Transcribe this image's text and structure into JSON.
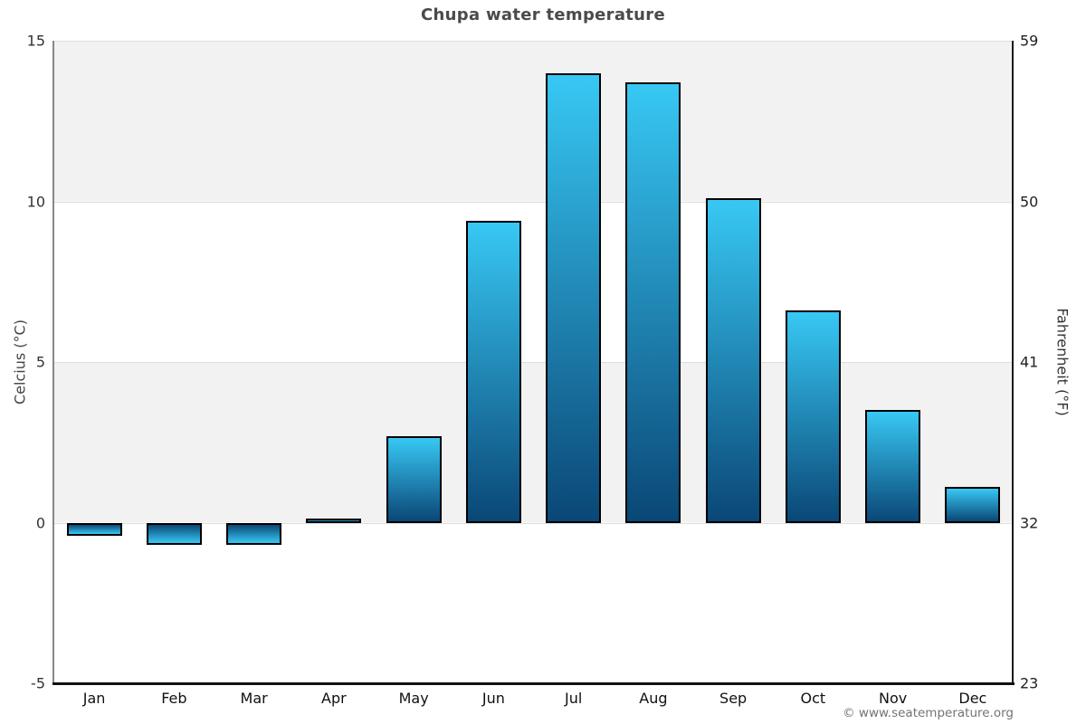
{
  "page": {
    "copyright": "© www.seatemperature.org"
  },
  "chart_data": {
    "type": "bar",
    "title": "Chupa water temperature",
    "categories": [
      "Jan",
      "Feb",
      "Mar",
      "Apr",
      "May",
      "Jun",
      "Jul",
      "Aug",
      "Sep",
      "Oct",
      "Nov",
      "Dec"
    ],
    "values": [
      -0.4,
      -0.7,
      -0.7,
      0.1,
      2.7,
      9.4,
      14.0,
      13.7,
      10.1,
      6.6,
      3.5,
      1.1
    ],
    "series_name": "Water temperature",
    "xlabel": "",
    "ylabel_left": "Celcius (°C)",
    "ylabel_right": "Fahrenheit (°F)",
    "ylim_celsius": [
      -5,
      15
    ],
    "yticks_left": [
      15,
      10,
      5,
      0,
      -5
    ],
    "yticks_right": [
      59,
      50,
      41,
      32,
      23
    ],
    "grid": "horizontal-bands",
    "legend": "none",
    "colors": {
      "bar_gradient_light": "#38c8f4",
      "bar_gradient_dark": "#0a4776",
      "bar_border": "#000000",
      "band_gray": "#f2f2f2",
      "band_white": "#ffffff",
      "title_text": "#4a4a4a",
      "axis_text": "#333333",
      "copyright_text": "#737373"
    }
  }
}
